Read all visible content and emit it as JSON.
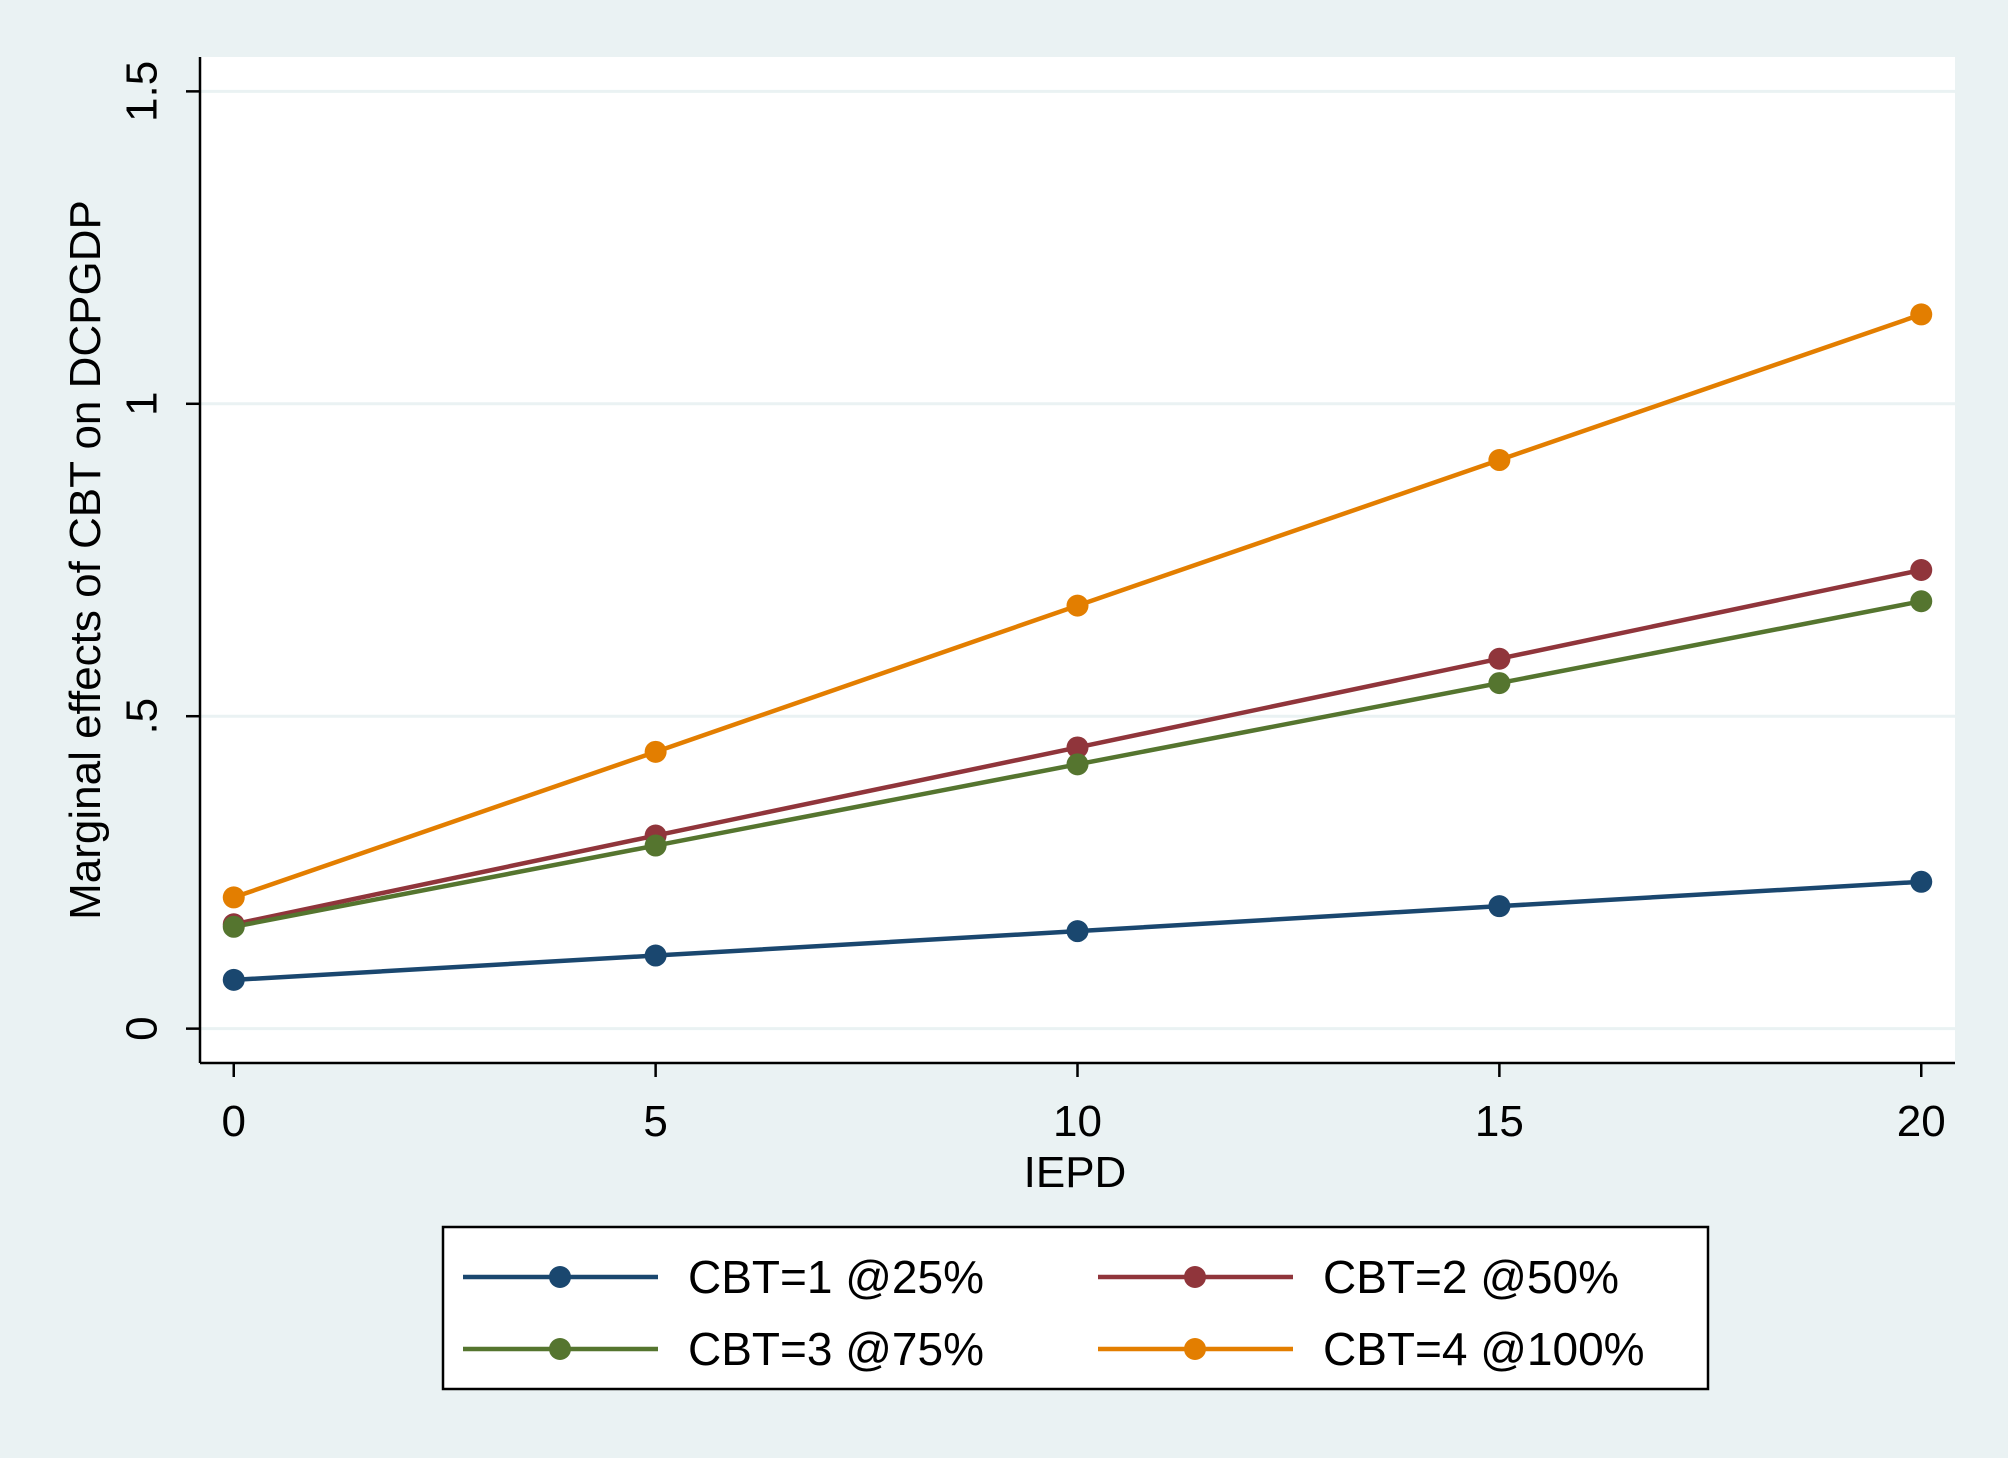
{
  "chart_data": {
    "type": "line",
    "title": "",
    "xlabel": "IEPD",
    "ylabel": "Marginal effects of CBT on DCPGDP",
    "x": [
      0,
      5,
      10,
      15,
      20
    ],
    "xticks": [
      0,
      5,
      10,
      15,
      20
    ],
    "xtick_labels": [
      "0",
      "5",
      "10",
      "15",
      "20"
    ],
    "xlim": [
      -0.4,
      20.4
    ],
    "yticks": [
      0,
      0.5,
      1,
      1.5
    ],
    "ytick_labels": [
      "0",
      ".5",
      "1",
      "1.5"
    ],
    "ylim": [
      -0.055,
      1.555
    ],
    "grid": "horizontal",
    "legend_position": "bottom",
    "colors": {
      "background": "#eaf2f3",
      "plot_area": "#ffffff",
      "gridline": "#eaf2f3"
    },
    "series": [
      {
        "name": "CBT=1 @25%",
        "color": "#1a476f",
        "values": [
          0.078,
          0.117,
          0.156,
          0.196,
          0.235
        ]
      },
      {
        "name": "CBT=2 @50%",
        "color": "#90353b",
        "values": [
          0.167,
          0.309,
          0.45,
          0.592,
          0.734
        ]
      },
      {
        "name": "CBT=3 @75%",
        "color": "#55752f",
        "values": [
          0.163,
          0.293,
          0.423,
          0.553,
          0.684
        ]
      },
      {
        "name": "CBT=4 @100%",
        "color": "#e37e00",
        "values": [
          0.21,
          0.443,
          0.677,
          0.91,
          1.143
        ]
      }
    ]
  }
}
